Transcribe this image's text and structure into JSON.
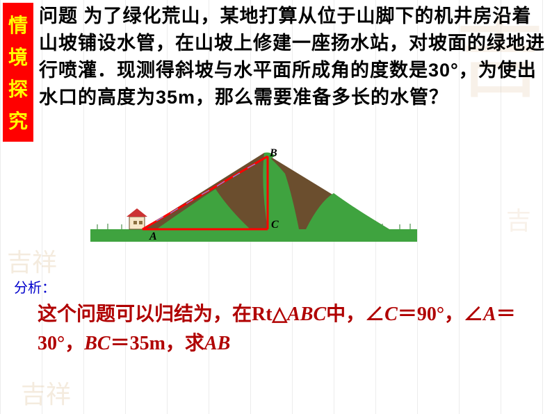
{
  "sidebar": {
    "chars": [
      "情",
      "境",
      "探",
      "究"
    ],
    "bg": "#ff0000",
    "color": "#ffff00"
  },
  "problem": {
    "label_text": "问题",
    "body": " 为了绿化荒山，某地打算从位于山脚下的机井房沿着山坡铺设水管，在山坡上修建一座扬水站，对坡面的绿地进行喷灌．现测得斜坡与水平面所成角的度数是30°，为使出水口的高度为35m，那么需要准备多长的水管？",
    "text_color": "#000000"
  },
  "diagram": {
    "mountain_fill": [
      "#6b4e2e",
      "#3fa33f"
    ],
    "ground_color": "#3fa33f",
    "triangle_line_color": "#ff0000",
    "labels": {
      "A": "A",
      "B": "B",
      "C": "C"
    },
    "label_font": "italic bold 16px Times New Roman",
    "house_wall": "#f7e6c7",
    "house_roof": "#cc3333",
    "triangle_stroke_width": 3
  },
  "analysis": {
    "label": "分析：",
    "label_color": "#0000cc",
    "text_color": "#b00000",
    "text_parts": [
      {
        "t": "这个问题可以归结为，在Rt△",
        "math": false
      },
      {
        "t": "ABC",
        "math": true
      },
      {
        "t": "中，∠",
        "math": false
      },
      {
        "t": "C",
        "math": true
      },
      {
        "t": "＝90°，∠",
        "math": false
      },
      {
        "t": "A",
        "math": true
      },
      {
        "t": "＝30°，",
        "math": false
      },
      {
        "t": "BC",
        "math": true
      },
      {
        "t": "＝35m，求",
        "math": false
      },
      {
        "t": "AB",
        "math": true
      }
    ]
  },
  "background": {
    "grid_color": "#d0d0d0",
    "watermark_color": "#d9b88c"
  }
}
